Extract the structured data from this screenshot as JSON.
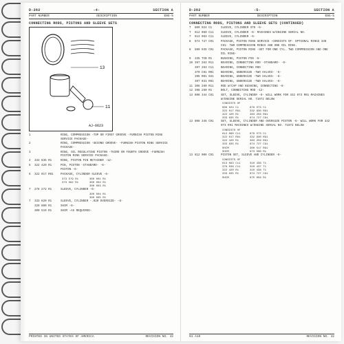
{
  "header": {
    "doc_left": "D-282",
    "page_left_num": "-4-",
    "page_right_num": "-5-",
    "section": "SECTION  A",
    "col1": "PART NUMBER",
    "col2": "DESCRIPTION",
    "eng_left": "ENG-5",
    "eng_right": "ENG-5"
  },
  "title": "CONNECTING RODS, PISTONS AND SLEEVE SETS",
  "title_right": "CONNECTING RODS, PISTONS AND SLEEVE SETS (CONTINUED)",
  "footer": {
    "printed": "PRINTED IN UNITED STATES OF AMERICA",
    "rev": "REVISION NO. 42",
    "code": "01 A10"
  },
  "left_entries": [
    {
      "ref": "1",
      "pn": "",
      "desc": "RING, COMPRESSION -TOP OR FIRST GROOVE -FURNISH PISTON RING SERVICE PACKAGE-"
    },
    {
      "ref": "2",
      "pn": "",
      "desc": "RING, COMPRESSION -SECOND GROOVE- -FURNISH PISTON RING SERVICE PACKAGE-"
    },
    {
      "ref": "3",
      "pn": "",
      "desc": "RING, OIL REGULATING PISTON -THIRD OR FOURTH GROOVE -FURNISH PISTON RING SERVICE PACKAGE-"
    },
    {
      "ref": "4",
      "pn": "333 835 R1",
      "desc": "RING, PISTON PIN RETAINER -12-"
    },
    {
      "ref": "5",
      "pn": "322 420 R1",
      "desc": "PIN, PISTON -STANDARD- -6-"
    },
    {
      "ref": "",
      "pn": "",
      "desc": "PISTON -6-"
    },
    {
      "ref": "6",
      "pn": "322 017 R91",
      "desc": "PACKAGE, CYLINDER SLEEVE -6-",
      "subs": [
        [
          "373 579 R1",
          "300 001 R1"
        ],
        [
          "373 582 R1",
          "300 002 R1"
        ],
        [
          "",
          "300 003 R1"
        ]
      ]
    },
    {
      "ref": "7",
      "pn": "278 272 R1",
      "desc": "SLEEVE, CYLINDER -6-",
      "subs": [
        [
          "",
          "300 004 R1"
        ],
        [
          "",
          "300 005 R1"
        ]
      ]
    },
    {
      "ref": "7",
      "pn": "333 820 R1",
      "desc": "SLEEVE, CYLINDER -.020 OVERSIZE- -6-"
    },
    {
      "ref": "",
      "pn": "320 800 R1",
      "desc": "SHIM -6-"
    },
    {
      "ref": "",
      "pn": "300 519 R1",
      "desc": "SHIM -AS REQUIRED-"
    }
  ],
  "right_entries": [
    {
      "ref": "7",
      "pn": "609 024 C1",
      "desc": "SLEEVE, CYLINDER STD -6-"
    },
    {
      "ref": "7",
      "pn": "612 060 C11",
      "desc": "SLEEVE, CYLINDER -6- MACHINES W/ENGINE SERIAL NO."
    },
    {
      "ref": "7",
      "pn": "613 063 C11",
      "desc": "SLEEVE, CYLINDER -6-"
    },
    {
      "ref": "8",
      "pn": "674 727 C91",
      "desc": "PACKAGE, PISTON RING SERVICE -CONSISTS OF- OPTIONAL RINGS 330 C91- TWO COMPRESSION RINGS AND ONE OIL RING."
    },
    {
      "ref": "8",
      "pn": "580 035 C91",
      "desc": "PACKAGE, PISTON RING -SET FOR ONE CYL. TWO COMPRESSION AND ONE OIL RING-"
    },
    {
      "ref": "9",
      "pn": "335 TCB R1",
      "desc": "BUSHING, PISTON PIN -6-"
    },
    {
      "ref": "10",
      "pn": "397 263 R11",
      "desc": "BEARING, CONNECTING ROD -STANDARD- -6-"
    },
    {
      "ref": "",
      "pn": "397 263 C11",
      "desc": "BEARING, CONNECTING ROD"
    },
    {
      "ref": "",
      "pn": "370 C91 R01",
      "desc": "BEARING, UNDERSIZE -TWO HALVES- -6-"
    },
    {
      "ref": "",
      "pn": "395 R01 031",
      "desc": "BEARING, UNDERSIZE -TWO HALVES- -6-"
    },
    {
      "ref": "",
      "pn": "397 031 R91",
      "desc": "BEARING, UNDERSIZE -TWO HALVES- -6-"
    },
    {
      "ref": "11",
      "pn": "306 260 R11",
      "desc": "ROD W/CAP AND BUSHING, CONNECTING -6-"
    },
    {
      "ref": "12",
      "pn": "398 250 R1",
      "desc": "BOLT, CONNECTING ROD -12-"
    },
    {
      "ref": "13",
      "pn": "808 344 C91",
      "desc": "SET, SLEEVE, CYLINDER -6- WILL WORK FOR 332 073 R91 MACHINES W/ENGINE SERIAL NO. 71072 BELOW",
      "subs": [
        [
          "CONSISTS OF",
          ""
        ],
        [
          "609 024 C1",
          "679 573 C1"
        ],
        [
          "322 017 R91",
          "332 830 R91"
        ],
        [
          "322 420 R1",
          "383 256 R91"
        ],
        [
          "333 835 R1",
          "674 727 C91"
        ]
      ]
    },
    {
      "ref": "13",
      "pn": "808 346 C91",
      "desc": "SET, SLEEVE, CYLINDER AND OVERSIZE PISTON -6- WILL WORK FOR 332 073 R91 MACHINES W/ENGINE SERIAL NO. 71072 BELOW",
      "subs": [
        [
          "CONSISTS OF",
          ""
        ],
        [
          "612 060 C11",
          "679 573 C1"
        ],
        [
          "322 017 R91",
          "332 830 R91"
        ],
        [
          "322 420 R1",
          "383 256 R91"
        ],
        [
          "333 835 R1",
          "674 727 C91"
        ],
        [
          "SHIM",
          "300 517 R91"
        ],
        [
          "SHIM",
          "973 500 R1"
        ]
      ]
    },
    {
      "ref": "13",
      "pn": "812 006 C91",
      "desc": "PISTON SET, SLEEVE AND CYLINDER -6-",
      "subs": [
        [
          "CONSISTS OF",
          ""
        ],
        [
          "613 063 C11",
          "310 436 T1"
        ],
        [
          "379 036 C11",
          "310 437 T1"
        ],
        [
          "322 420 R1",
          "310 438 T1"
        ],
        [
          "333 835 R1",
          "674 727 C91"
        ],
        [
          "SHIM",
          "875 056 R1"
        ]
      ]
    }
  ],
  "callouts": {
    "a": "13",
    "b": "11",
    "c": "AJ-6623"
  }
}
